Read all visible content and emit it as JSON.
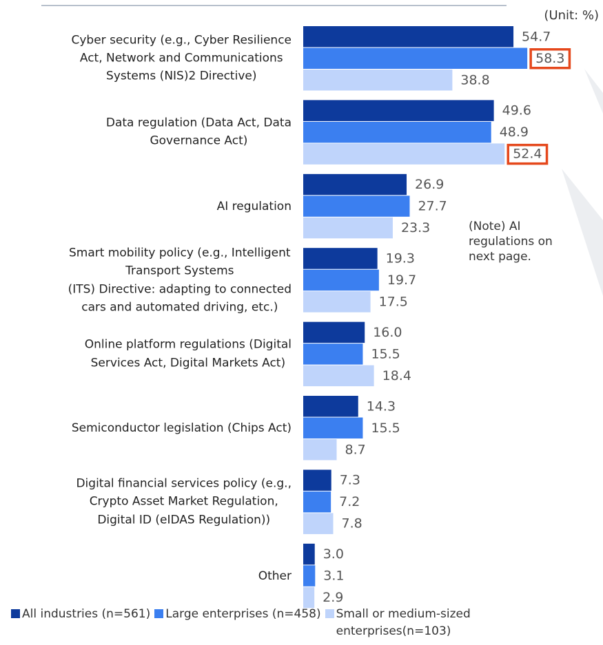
{
  "chart_data": {
    "type": "bar",
    "orientation": "horizontal",
    "unit_note": "(Unit: %)",
    "note": "(Note) AI\nregulations on\nnext page.",
    "categories": [
      "Cyber security (e.g., Cyber Resilience\nAct, Network and Communications\nSystems (NIS)2 Directive)",
      "Data regulation (Data Act, Data\nGovernance Act)",
      "AI regulation",
      "Smart mobility policy (e.g., Intelligent\nTransport Systems\n(ITS) Directive: adapting to connected\ncars and automated driving, etc.)",
      "Online platform regulations (Digital\nServices Act, Digital Markets Act)",
      "Semiconductor legislation (Chips Act)",
      "Digital financial services policy (e.g.,\nCrypto Asset Market Regulation,\nDigital ID (eIDAS Regulation))",
      "Other"
    ],
    "series": [
      {
        "name": "All industries (n=561)",
        "color": "#0d3a9c",
        "values": [
          54.7,
          49.6,
          26.9,
          19.3,
          16.0,
          14.3,
          7.3,
          3.0
        ],
        "value_labels": [
          "54.7",
          "49.6",
          "26.9",
          "19.3",
          "16.0",
          "14.3",
          "7.3",
          "3.0"
        ]
      },
      {
        "name": "Large enterprises (n=458)",
        "color": "#3b7ff0",
        "values": [
          58.3,
          48.9,
          27.7,
          19.7,
          15.5,
          15.5,
          7.2,
          3.1
        ],
        "value_labels": [
          "58.3",
          "48.9",
          "27.7",
          "19.7",
          "15.5",
          "15.5",
          "7.2",
          "3.1"
        ]
      },
      {
        "name": "Small or medium-sized\nenterprises(n=103)",
        "color": "#bfd4fb",
        "values": [
          38.8,
          52.4,
          23.3,
          17.5,
          18.4,
          8.7,
          7.8,
          2.9
        ],
        "value_labels": [
          "38.8",
          "52.4",
          "23.3",
          "17.5",
          "18.4",
          "8.7",
          "7.8",
          "2.9"
        ]
      }
    ],
    "xlim": [
      0,
      78
    ],
    "highlight_color": "#e5481c",
    "highlighted": [
      {
        "series": 1,
        "index": 0
      },
      {
        "series": 2,
        "index": 1
      }
    ]
  }
}
